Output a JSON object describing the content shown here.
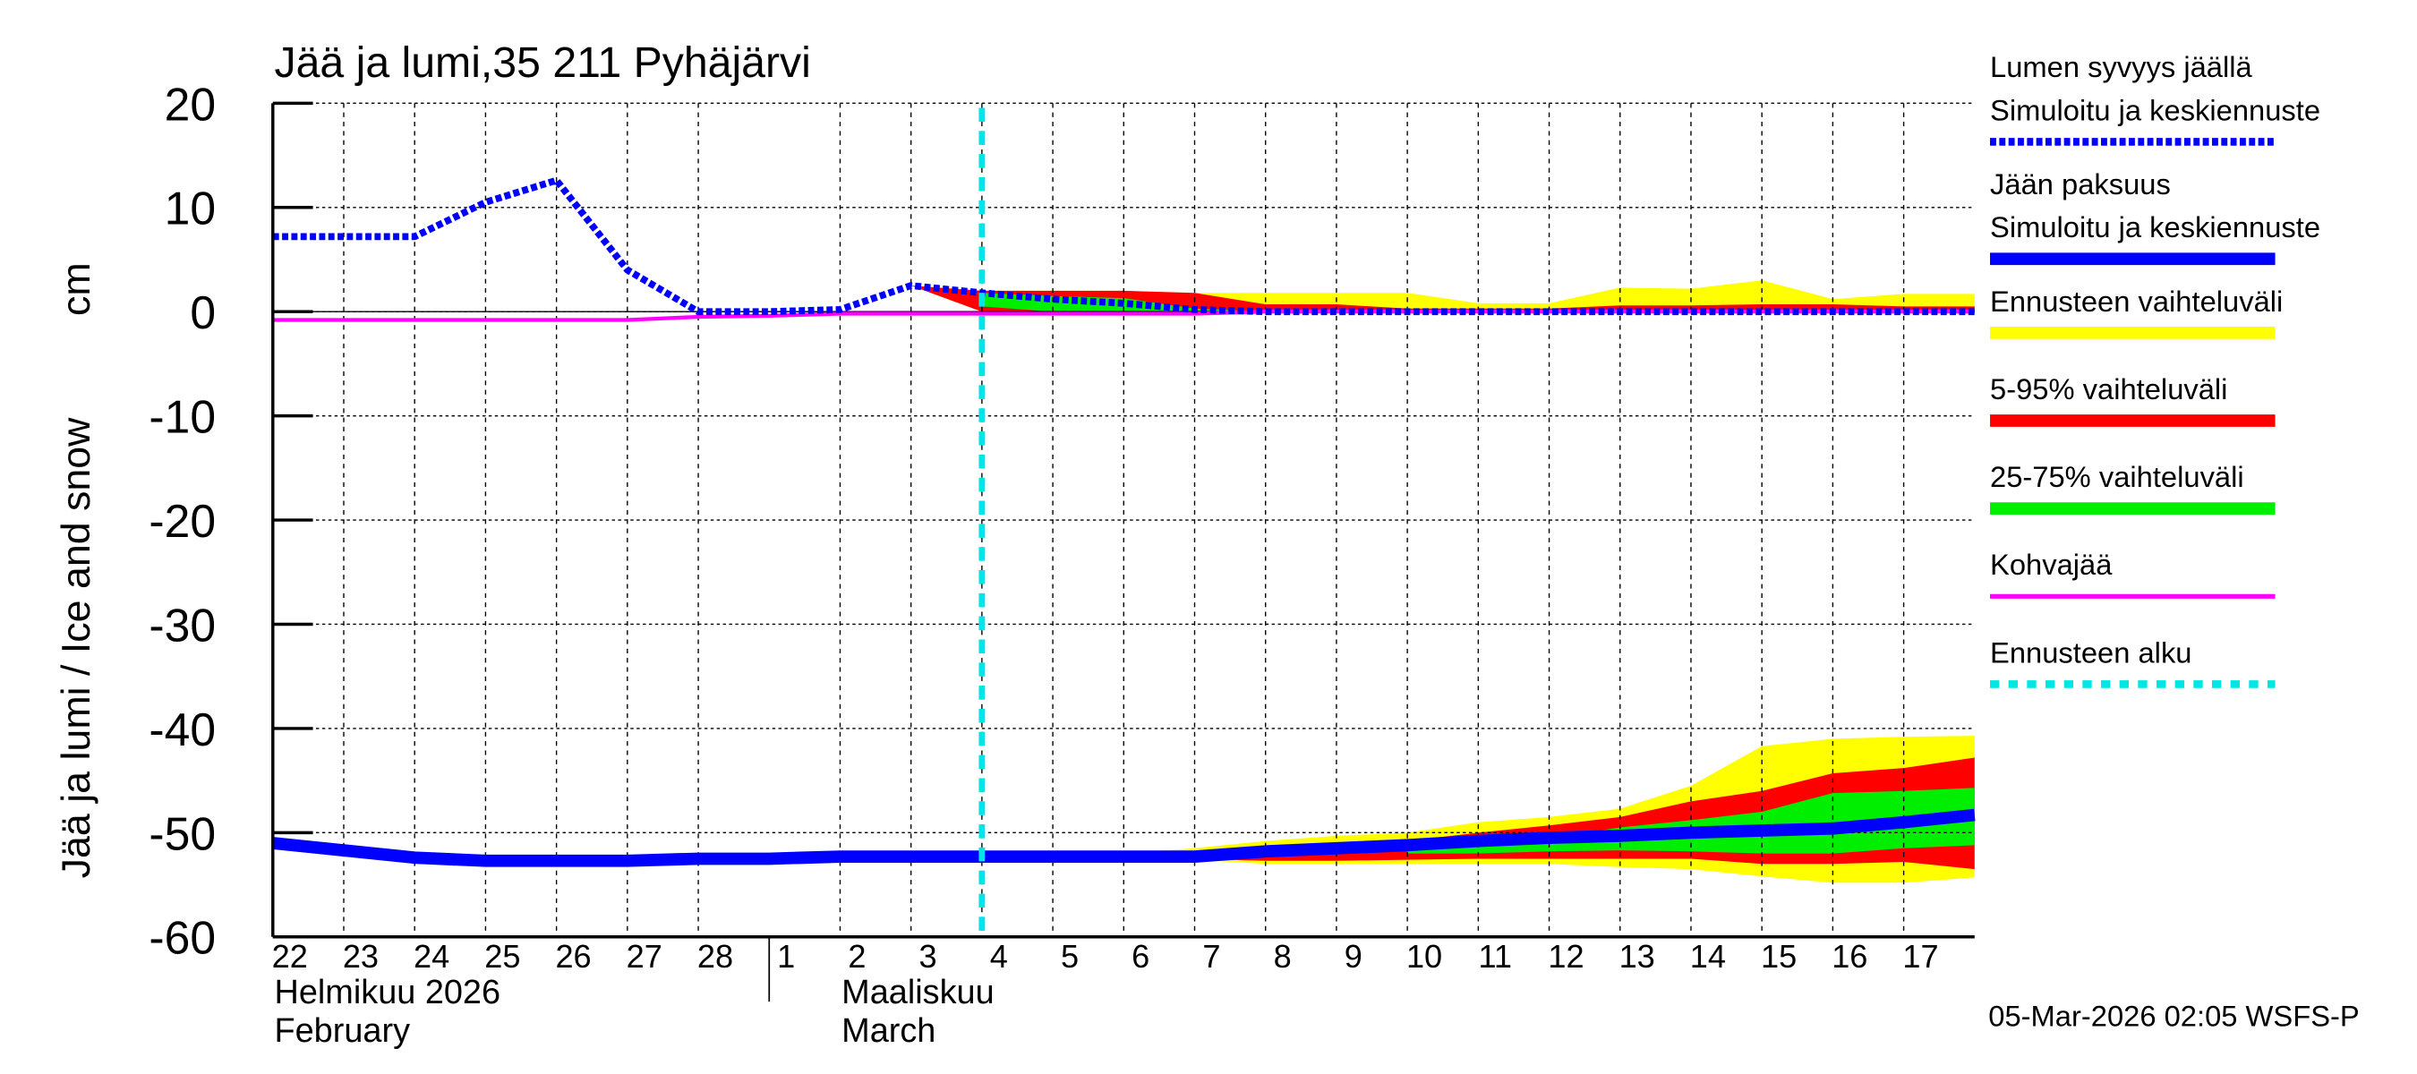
{
  "chart_data": {
    "type": "area",
    "title": "Jää ja lumi,35 211 Pyhäjärvi",
    "ylabel": "Jää ja lumi / Ice and snow",
    "yunit": "cm",
    "ylim": [
      -60,
      20
    ],
    "yticks": [
      20,
      10,
      0,
      -10,
      -20,
      -30,
      -40,
      -50,
      -60
    ],
    "grid": true,
    "legend_position": "right",
    "x_dates": [
      "2026-02-22",
      "2026-02-23",
      "2026-02-24",
      "2026-02-25",
      "2026-02-26",
      "2026-02-27",
      "2026-02-28",
      "2026-03-01",
      "2026-03-02",
      "2026-03-03",
      "2026-03-04",
      "2026-03-05",
      "2026-03-06",
      "2026-03-07",
      "2026-03-08",
      "2026-03-09",
      "2026-03-10",
      "2026-03-11",
      "2026-03-12",
      "2026-03-13",
      "2026-03-14",
      "2026-03-15",
      "2026-03-16",
      "2026-03-17",
      "2026-03-18"
    ],
    "xtick_labels": [
      "22",
      "23",
      "24",
      "25",
      "26",
      "27",
      "28",
      "1",
      "2",
      "3",
      "4",
      "5",
      "6",
      "7",
      "8",
      "9",
      "10",
      "11",
      "12",
      "13",
      "14",
      "15",
      "16",
      "17"
    ],
    "month_labels": [
      {
        "fi": "Helmikuu  2026",
        "en": "February",
        "start": "2026-02-22"
      },
      {
        "fi": "Maaliskuu",
        "en": "March",
        "start": "2026-03-02"
      }
    ],
    "forecast_start": "2026-03-04",
    "series": {
      "snow": [
        7.2,
        7.2,
        7.2,
        10.5,
        12.6,
        4,
        0,
        0,
        0.2,
        2.5,
        1.8,
        1.2,
        0.8,
        0.2,
        0,
        0,
        0,
        0,
        0,
        0,
        0,
        0,
        0,
        0,
        0
      ],
      "ice": [
        -51,
        -51.7,
        -52.4,
        -52.7,
        -52.7,
        -52.7,
        -52.5,
        -52.5,
        -52.3,
        -52.3,
        -52.3,
        -52.3,
        -52.3,
        -52.3,
        -51.8,
        -51.5,
        -51.2,
        -50.8,
        -50.5,
        -50.3,
        -50,
        -49.8,
        -49.6,
        -49,
        -48.3
      ],
      "slush": [
        -0.8,
        -0.8,
        -0.8,
        -0.8,
        -0.8,
        -0.8,
        -0.5,
        -0.4,
        -0.2,
        -0.2,
        -0.2,
        -0.2,
        -0.2,
        -0.2,
        0,
        0,
        0,
        0,
        0,
        0,
        0,
        0,
        0,
        0,
        0
      ]
    },
    "bands": [
      {
        "kind": "yellow",
        "start_index": 9,
        "upper": [
          2.5,
          2,
          2,
          2,
          1.8,
          1.8,
          1.8,
          1.8,
          0.8,
          0.8,
          2.3,
          2.2,
          3,
          1.2,
          1.7,
          1.7
        ],
        "lower": [
          2.5,
          0,
          0,
          0,
          0,
          0,
          0,
          0,
          0,
          0,
          0,
          0,
          0,
          0,
          0,
          0
        ]
      },
      {
        "kind": "red",
        "start_index": 9,
        "upper": [
          2.5,
          2,
          2,
          2,
          1.8,
          0.7,
          0.7,
          0.3,
          0.3,
          0.3,
          0.6,
          0.6,
          0.7,
          0.7,
          0.5,
          0.5
        ],
        "lower": [
          2.5,
          0,
          0,
          0,
          0,
          0,
          0,
          0,
          0,
          0,
          0,
          0,
          0,
          0,
          0,
          0
        ]
      },
      {
        "kind": "green",
        "start_index": 10,
        "upper": [
          1.8,
          1.5,
          1.3,
          0.3,
          0,
          0,
          0,
          0,
          0,
          0,
          0,
          0,
          0,
          0,
          0
        ],
        "lower": [
          0.5,
          0,
          0,
          0,
          0,
          0,
          0,
          0,
          0,
          0,
          0,
          0,
          0,
          0,
          0
        ]
      },
      {
        "kind": "yellow",
        "start_index": 12,
        "upper": [
          -52,
          -51.5,
          -50.8,
          -50.3,
          -50,
          -49,
          -48.5,
          -47.7,
          -45.5,
          -41.7,
          -41,
          -40.8,
          -40.7
        ],
        "lower": [
          -52.4,
          -52.6,
          -53,
          -53,
          -53,
          -53,
          -53,
          -53.3,
          -53.5,
          -54.2,
          -54.8,
          -54.8,
          -54.3
        ]
      },
      {
        "kind": "red",
        "start_index": 13,
        "upper": [
          -52,
          -51.5,
          -51.2,
          -50.8,
          -50,
          -49.3,
          -48.5,
          -47,
          -46,
          -44.3,
          -43.8,
          -42.8
        ],
        "lower": [
          -52.5,
          -52.7,
          -52.7,
          -52.6,
          -52.5,
          -52.5,
          -52.5,
          -52.5,
          -53,
          -53,
          -52.8,
          -53.5
        ]
      },
      {
        "kind": "green",
        "start_index": 16,
        "upper": [
          -51.5,
          -51,
          -50.5,
          -49.5,
          -48.8,
          -48,
          -46.2,
          -46,
          -45.7
        ],
        "lower": [
          -52,
          -52,
          -51.8,
          -51.7,
          -51.8,
          -52,
          -52,
          -51.5,
          -51.2
        ]
      }
    ],
    "colors": {
      "snow": "#0000ff",
      "ice": "#0000ff",
      "yellow": "#ffff00",
      "red": "#ff0000",
      "green": "#00ee00",
      "slush": "#ff00ff",
      "forecast_start": "#00e5e5"
    },
    "legend": [
      {
        "line1": "Lumen syvyys jäällä",
        "line2": "Simuloitu ja keskiennuste",
        "style": "blue-dotted"
      },
      {
        "line1": "Jään paksuus",
        "line2": "Simuloitu ja keskiennuste",
        "style": "blue-thick"
      },
      {
        "line1": "Ennusteen vaihteluväli",
        "style": "yellow"
      },
      {
        "line1": "5-95% vaihteluväli",
        "style": "red"
      },
      {
        "line1": "25-75% vaihteluväli",
        "style": "green"
      },
      {
        "line1": "Kohvajää",
        "style": "magenta"
      },
      {
        "line1": "Ennusteen alku",
        "style": "cyan-dashed"
      }
    ]
  },
  "footer": {
    "timestamp": "05-Mar-2026 02:05 WSFS-P"
  }
}
